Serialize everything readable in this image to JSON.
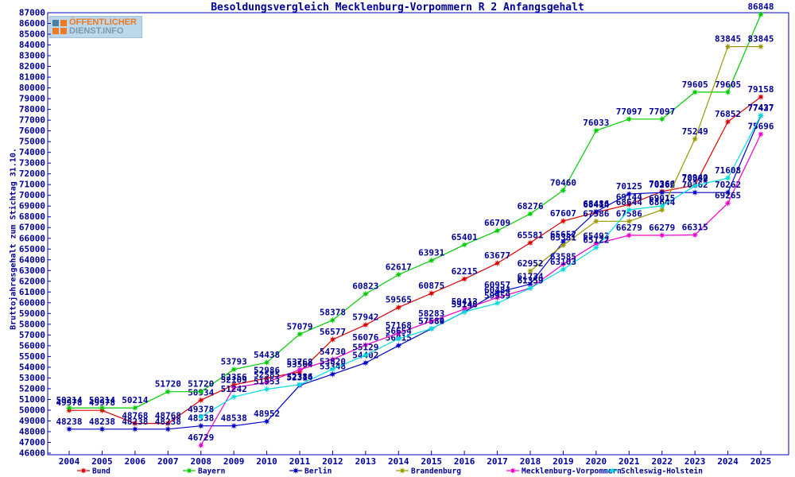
{
  "title": "Besoldungsvergleich Mecklenburg-Vorpommern R 2 Anfangsgehalt",
  "y_axis_label": "Bruttojahresgehalt zum Stichtag 31.10.",
  "logo": {
    "line1": "ÖFFENTLICHER",
    "line2": "DIENST.INFO"
  },
  "frame_color": "#0000bb",
  "text_color": "#000099",
  "chart_data": {
    "type": "line",
    "x": [
      2004,
      2005,
      2006,
      2007,
      2008,
      2009,
      2010,
      2011,
      2012,
      2013,
      2014,
      2015,
      2016,
      2017,
      2018,
      2019,
      2020,
      2021,
      2022,
      2023,
      2024,
      2025
    ],
    "ylim": [
      46000,
      87000
    ],
    "ytick_step": 1000,
    "grid": false,
    "legend_position": "bottom",
    "point_labels": true,
    "series": [
      {
        "name": "Bund",
        "color": "#dd0000",
        "values": [
          49978,
          49978,
          48768,
          48768,
          50934,
          52356,
          52986,
          53564,
          56577,
          57942,
          59565,
          60875,
          62215,
          63677,
          65581,
          67607,
          68414,
          69144,
          70366,
          70940,
          76852,
          79158
        ]
      },
      {
        "name": "Bayern",
        "color": "#00cc00",
        "values": [
          50214,
          50214,
          50214,
          51720,
          51720,
          53793,
          54438,
          57079,
          58378,
          60823,
          62617,
          63931,
          65401,
          66709,
          68276,
          70460,
          76033,
          77097,
          77097,
          79605,
          79605,
          86848
        ]
      },
      {
        "name": "Berlin",
        "color": "#0000cc",
        "values": [
          48238,
          48238,
          48238,
          48238,
          48538,
          48538,
          48952,
          52314,
          53348,
          54402,
          56015,
          57584,
          59148,
          60957,
          61734,
          65652,
          68486,
          70125,
          70262,
          70262,
          70262,
          77427
        ]
      },
      {
        "name": "Brandenburg",
        "color": "#999900",
        "values": [
          null,
          null,
          null,
          null,
          null,
          null,
          null,
          null,
          null,
          null,
          null,
          null,
          null,
          null,
          62952,
          65351,
          67586,
          67586,
          68644,
          75249,
          83845,
          83845
        ]
      },
      {
        "name": "Mecklenburg-Vorpommern",
        "color": "#ee00cc",
        "values": [
          null,
          null,
          null,
          null,
          46729,
          52109,
          52585,
          53768,
          54730,
          56076,
          57168,
          58283,
          59413,
          60484,
          61359,
          63585,
          65493,
          66279,
          66279,
          66315,
          69265,
          75696
        ]
      },
      {
        "name": "Schleswig-Holstein",
        "color": "#00dddd",
        "values": [
          null,
          null,
          null,
          null,
          49378,
          51242,
          51953,
          52386,
          53820,
          55129,
          56654,
          57589,
          59148,
          59959,
          61359,
          63103,
          65122,
          68644,
          69015,
          70882,
          71608,
          77437
        ]
      }
    ]
  }
}
